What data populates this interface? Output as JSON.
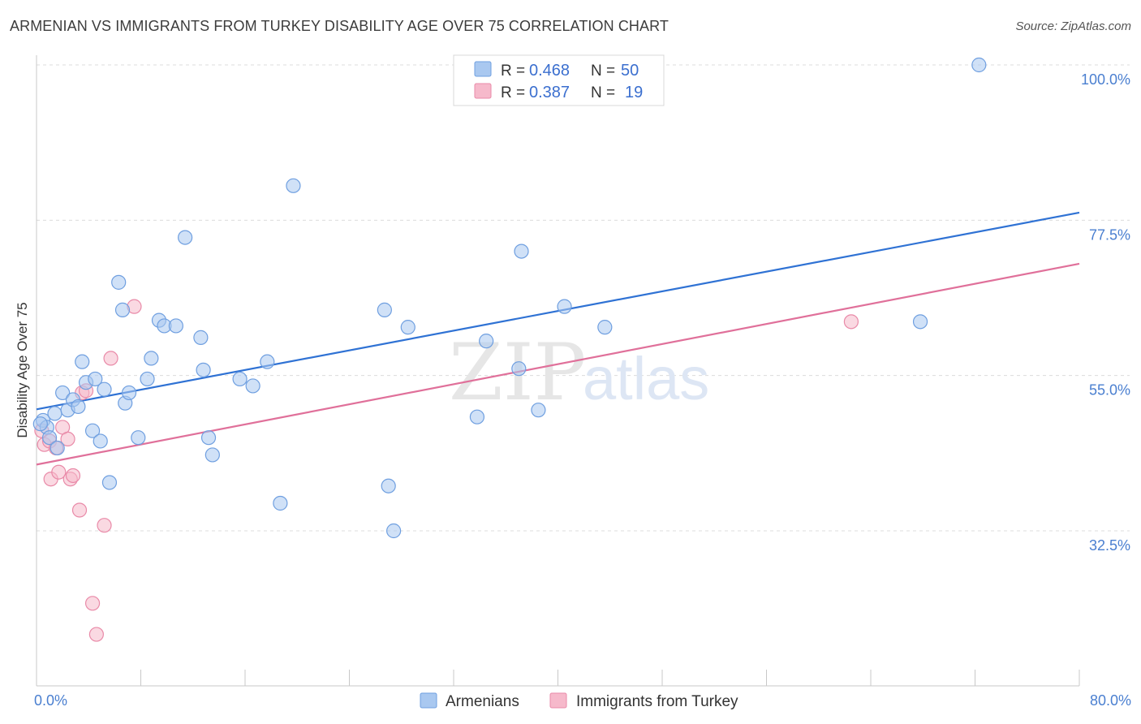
{
  "title": "ARMENIAN VS IMMIGRANTS FROM TURKEY DISABILITY AGE OVER 75 CORRELATION CHART",
  "source": "Source: ZipAtlas.com",
  "watermark": {
    "zip": "ZIP",
    "atlas": "atlas"
  },
  "colors": {
    "armenians_fill": "#a9c8f0",
    "armenians_stroke": "#6f9fe0",
    "armenians_line": "#2f72d4",
    "turkey_fill": "#f6b9cb",
    "turkey_stroke": "#e98aa8",
    "turkey_line": "#e0709a",
    "tick_label": "#4a7fd0",
    "grid": "#dcdcdc"
  },
  "legend": {
    "rows": [
      {
        "r_label": "R =",
        "r_value": "0.468",
        "n_label": "N =",
        "n_value": "50"
      },
      {
        "r_label": "R =",
        "r_value": "0.387",
        "n_label": "N =",
        "n_value": "19"
      }
    ]
  },
  "chart_data": {
    "type": "scatter",
    "xlabel": "",
    "ylabel": "Disability Age Over 75",
    "xlim": [
      0,
      80
    ],
    "ylim": [
      10,
      101
    ],
    "x_tick_labels": [
      "0.0%",
      "80.0%"
    ],
    "y_ticks": [
      {
        "value": 32.5,
        "label": "32.5%"
      },
      {
        "value": 55.0,
        "label": "55.0%"
      },
      {
        "value": 77.5,
        "label": "77.5%"
      },
      {
        "value": 100.0,
        "label": "100.0%"
      }
    ],
    "series": [
      {
        "name": "Armenians",
        "points": [
          [
            0.5,
            48.5
          ],
          [
            0.8,
            47.5
          ],
          [
            1.0,
            46.0
          ],
          [
            1.4,
            49.5
          ],
          [
            1.6,
            44.5
          ],
          [
            2.0,
            52.5
          ],
          [
            2.4,
            50.0
          ],
          [
            2.8,
            51.5
          ],
          [
            3.2,
            50.5
          ],
          [
            3.5,
            57.0
          ],
          [
            3.8,
            54.0
          ],
          [
            4.3,
            47.0
          ],
          [
            4.5,
            54.5
          ],
          [
            4.9,
            45.5
          ],
          [
            5.2,
            53.0
          ],
          [
            5.6,
            39.5
          ],
          [
            6.3,
            68.5
          ],
          [
            6.6,
            64.5
          ],
          [
            6.8,
            51.0
          ],
          [
            7.1,
            52.5
          ],
          [
            7.8,
            46.0
          ],
          [
            8.5,
            54.5
          ],
          [
            8.8,
            57.5
          ],
          [
            9.4,
            63.0
          ],
          [
            9.8,
            62.2
          ],
          [
            10.7,
            62.2
          ],
          [
            11.4,
            75.0
          ],
          [
            12.6,
            60.5
          ],
          [
            12.8,
            55.8
          ],
          [
            13.2,
            46.0
          ],
          [
            13.5,
            43.5
          ],
          [
            15.6,
            54.5
          ],
          [
            16.6,
            53.5
          ],
          [
            17.7,
            57.0
          ],
          [
            18.7,
            36.5
          ],
          [
            19.7,
            82.5
          ],
          [
            26.7,
            64.5
          ],
          [
            27.0,
            39.0
          ],
          [
            27.4,
            32.5
          ],
          [
            28.5,
            62.0
          ],
          [
            33.8,
            49.0
          ],
          [
            34.5,
            60.0
          ],
          [
            37.0,
            56.0
          ],
          [
            37.2,
            73.0
          ],
          [
            38.5,
            50.0
          ],
          [
            40.5,
            65.0
          ],
          [
            43.6,
            62.0
          ],
          [
            67.8,
            62.8
          ],
          [
            72.3,
            100.0
          ],
          [
            0.3,
            48.0
          ]
        ]
      },
      {
        "name": "Immigrants from Turkey",
        "points": [
          [
            0.4,
            47.0
          ],
          [
            0.6,
            45.0
          ],
          [
            1.0,
            45.5
          ],
          [
            1.1,
            40.0
          ],
          [
            1.5,
            44.5
          ],
          [
            1.7,
            41.0
          ],
          [
            2.0,
            47.5
          ],
          [
            2.4,
            45.8
          ],
          [
            2.6,
            40.0
          ],
          [
            2.8,
            40.5
          ],
          [
            3.3,
            35.5
          ],
          [
            3.5,
            52.5
          ],
          [
            3.8,
            52.8
          ],
          [
            5.2,
            33.3
          ],
          [
            4.3,
            22.0
          ],
          [
            4.6,
            17.5
          ],
          [
            5.7,
            57.5
          ],
          [
            7.5,
            65.0
          ],
          [
            62.5,
            62.8
          ]
        ]
      }
    ],
    "trendlines": [
      {
        "series": "Armenians",
        "x": [
          0,
          80
        ],
        "y": [
          50.1,
          78.6
        ]
      },
      {
        "series": "Immigrants from Turkey",
        "x": [
          0,
          80
        ],
        "y": [
          42.1,
          71.2
        ]
      }
    ]
  }
}
